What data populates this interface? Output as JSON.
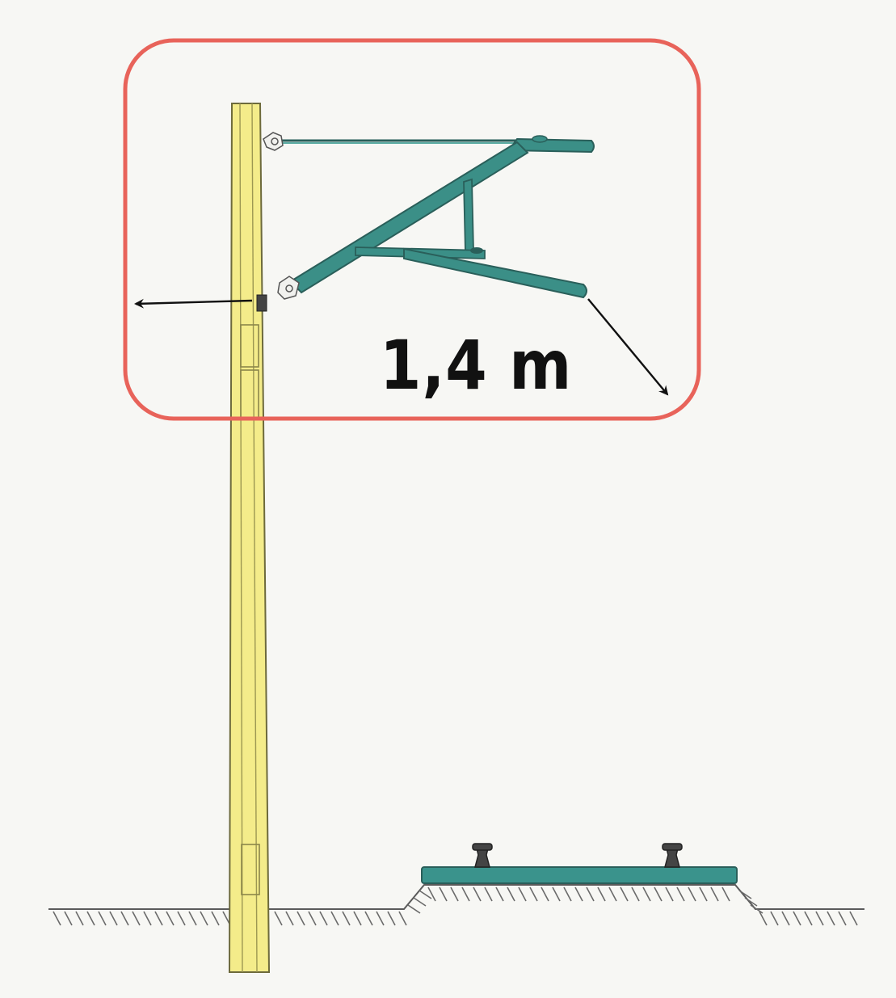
{
  "colors": {
    "background": "#f7f7f4",
    "highlight_frame": "#e8635a",
    "pole_fill": "#f4ec8a",
    "pole_outline": "#6d6a3c",
    "cantilever": "#3b8f87",
    "cantilever_dark": "#2a5f5a",
    "sleeper": "#3a938c",
    "ground_hatch": "#5b5b5b",
    "arrow": "#111111",
    "label": "#111111"
  },
  "dimension": {
    "label": "1,4 m"
  },
  "parts": [
    "highlight-frame-icon",
    "mast-icon",
    "cantilever-icon",
    "insulator-icon",
    "track-sleeper-icon",
    "rail-icon",
    "ground-hatch-icon",
    "dimension-arrow-icon"
  ]
}
